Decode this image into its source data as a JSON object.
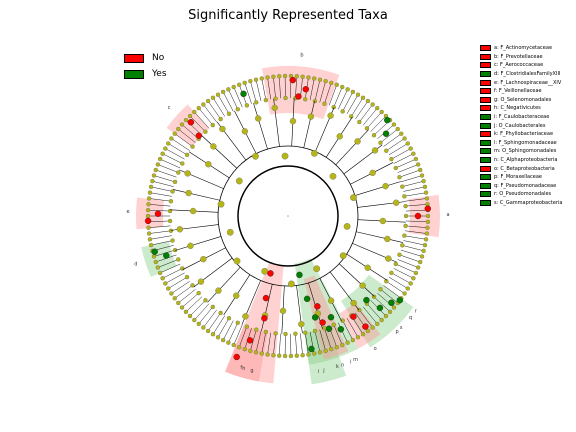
{
  "title": "Significantly Represented Taxa",
  "legend": [
    {
      "label": "No",
      "color": "#ff0000"
    },
    {
      "label": "Yes",
      "color": "#008000"
    }
  ],
  "colors": {
    "node": "#b5b51a",
    "red": "#ff0000",
    "green": "#008000",
    "red_band": "#ff9999",
    "green_band": "#8fd08f"
  },
  "taxa": [
    {
      "letter": "a",
      "label": "a: F_Actinomycetaceae",
      "group": "No",
      "angle": 0
    },
    {
      "letter": "b",
      "label": "b: F_Prevotellaceae",
      "group": "No",
      "angle": -85
    },
    {
      "letter": "c",
      "label": "c: F_Aerococcaceae",
      "group": "No",
      "angle": -138
    },
    {
      "letter": "d",
      "label": "d: F_ClostridialesFamilyXIII",
      "group": "Yes",
      "angle": 162
    },
    {
      "letter": "e",
      "label": "e: F_Lachnospiraceae__XIV",
      "group": "No",
      "angle": 181
    },
    {
      "letter": "f",
      "label": "f: F_Veillonellaceae",
      "group": "No",
      "angle": 107
    },
    {
      "letter": "g",
      "label": "g: O_Selenomonadales",
      "group": "No",
      "angle": 103
    },
    {
      "letter": "h",
      "label": "h: C_Negativicutes",
      "group": "No",
      "angle": 106
    },
    {
      "letter": "i",
      "label": "i: F_Caulobacteraceae",
      "group": "Yes",
      "angle": 79
    },
    {
      "letter": "j",
      "label": "j: O_Caulobacterales",
      "group": "Yes",
      "angle": 77
    },
    {
      "letter": "k",
      "label": "k: F_Phyllobacteriaceae",
      "group": "No",
      "angle": 72
    },
    {
      "letter": "l",
      "label": "l: F_Sphingomonadaceae",
      "group": "Yes",
      "angle": 67
    },
    {
      "letter": "m",
      "label": "m: O_Sphingomonadales",
      "group": "Yes",
      "angle": 65
    },
    {
      "letter": "n",
      "label": "n: C_Alphaproteobacteria",
      "group": "Yes",
      "angle": 70
    },
    {
      "letter": "o",
      "label": "o: C_Betaproteobacteria",
      "group": "No",
      "angle": 57
    },
    {
      "letter": "p",
      "label": "p: F_Moraxellaceae",
      "group": "Yes",
      "angle": 47
    },
    {
      "letter": "q",
      "label": "q: F_Pseudomonadaceae",
      "group": "Yes",
      "angle": 40
    },
    {
      "letter": "r",
      "label": "r: O_Pseudomonadales",
      "group": "Yes",
      "angle": 37
    },
    {
      "letter": "s",
      "label": "s: C_Gammaproteobacteria",
      "group": "Yes",
      "angle": 45
    }
  ]
}
